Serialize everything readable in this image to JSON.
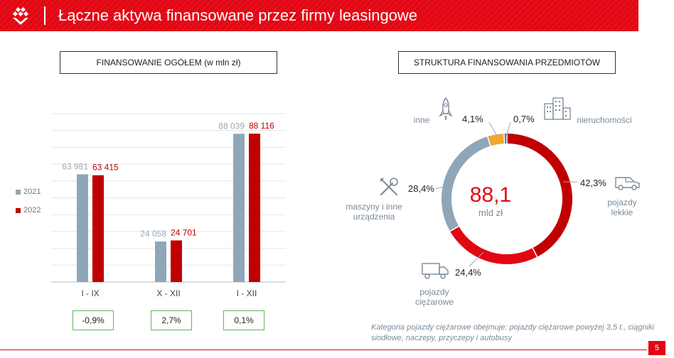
{
  "header": {
    "title": "Łączne aktywa finansowane przez firmy leasingowe"
  },
  "colors": {
    "red": "#e30613",
    "dark_red": "#c00000",
    "blue_gray": "#8fa6b8",
    "orange": "#f0a830",
    "blue": "#4472c4"
  },
  "left_chart": {
    "title": "FINANSOWANIE OGÓŁEM (w mln zł)",
    "legend": [
      "2021",
      "2022"
    ],
    "changes": [
      "-0,9%",
      "2,7%",
      "0,1%"
    ]
  },
  "right_chart": {
    "title": "STRUKTURA FINANSOWANIA PRZEDMIOTÓW",
    "center_value": "88,1",
    "center_unit": "mld zł"
  },
  "chart_data": [
    {
      "type": "bar",
      "title": "FINANSOWANIE OGÓŁEM (w mln zł)",
      "categories": [
        "I - IX",
        "X - XII",
        "I - XII"
      ],
      "series": [
        {
          "name": "2021",
          "values": [
            63981,
            24058,
            88039
          ],
          "labels": [
            "63 981",
            "24 058",
            "88 039"
          ],
          "color": "#8fa6b8"
        },
        {
          "name": "2022",
          "values": [
            63415,
            24701,
            88116
          ],
          "labels": [
            "63 415",
            "24 701",
            "88 116"
          ],
          "color": "#c00000"
        }
      ],
      "ylim": [
        0,
        100000
      ],
      "grid": true,
      "legend": "left"
    },
    {
      "type": "pie",
      "title": "STRUKTURA FINANSOWANIA PRZEDMIOTÓW",
      "slices": [
        {
          "label": "pojazdy lekkie",
          "value": 42.3,
          "text": "42,3%",
          "color": "#c00000",
          "icon": "van-icon"
        },
        {
          "label": "pojazdy ciężarowe",
          "value": 24.4,
          "text": "24,4%",
          "color": "#e30613",
          "icon": "truck-icon"
        },
        {
          "label": "maszyny i inne urządzenia",
          "value": 28.4,
          "text": "28,4%",
          "color": "#8fa6b8",
          "icon": "tools-icon"
        },
        {
          "label": "inne",
          "value": 4.1,
          "text": "4,1%",
          "color": "#f0a830",
          "icon": "rocket-icon"
        },
        {
          "label": "nieruchomości",
          "value": 0.7,
          "text": "0,7%",
          "color": "#4472c4",
          "icon": "building-icon"
        }
      ]
    }
  ],
  "footnote": "Kategoria pojazdy ciężarowe obejmuje: pojazdy ciężarowe powyżej 3,5 t., ciągniki siodłowe, naczepy, przyczepy i autobusy",
  "page_number": "5"
}
